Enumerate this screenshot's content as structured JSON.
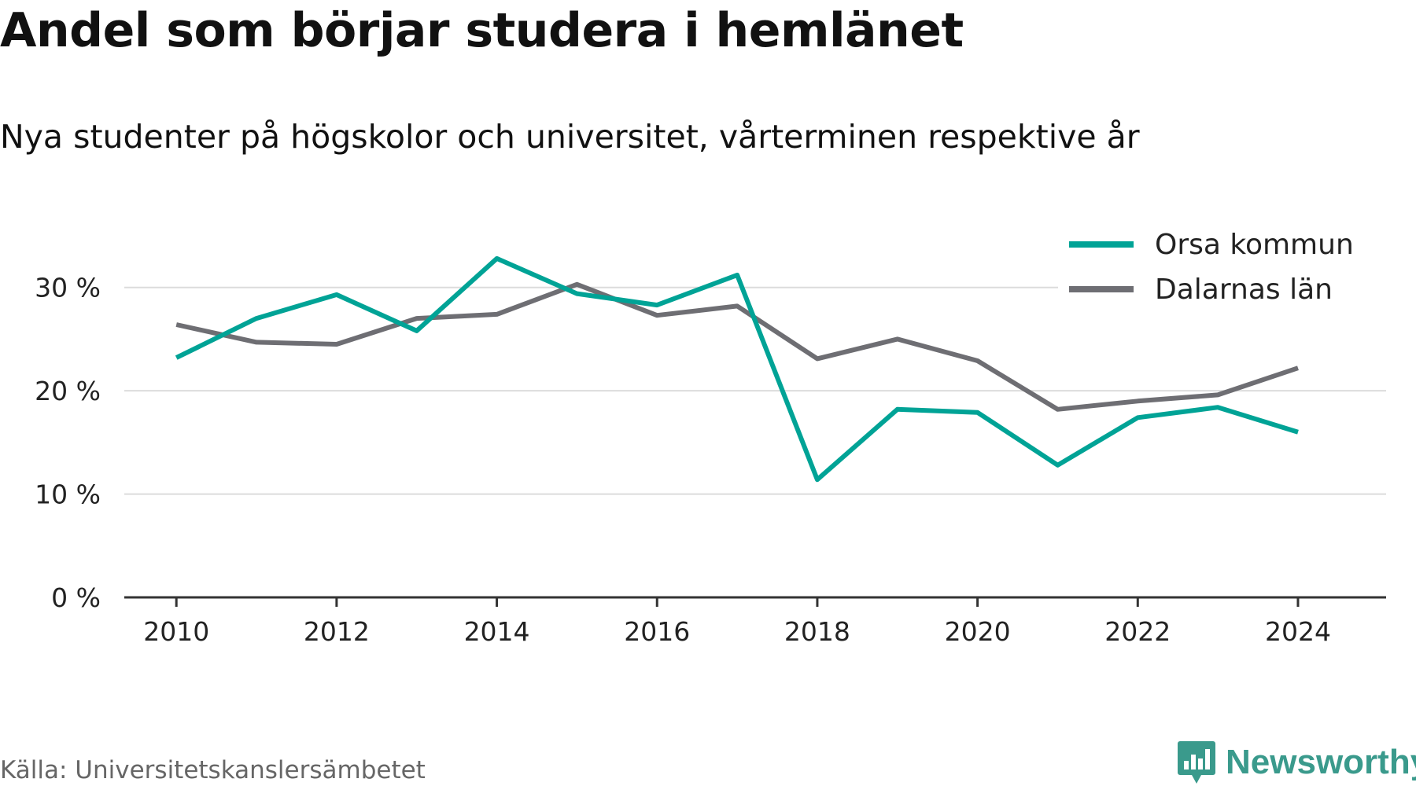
{
  "chart_data": {
    "type": "line",
    "title": "Andel som börjar studera i hemlänet",
    "subtitle": "Nya studenter på högskolor och universitet, vårterminen respektive år",
    "xlabel": "",
    "ylabel": "",
    "x": [
      2010,
      2011,
      2012,
      2013,
      2014,
      2015,
      2016,
      2017,
      2018,
      2019,
      2020,
      2021,
      2022,
      2023,
      2024
    ],
    "series": [
      {
        "name": "Orsa kommun",
        "color": "#00a396",
        "values": [
          23.2,
          27.0,
          29.3,
          25.8,
          32.8,
          29.4,
          28.3,
          31.2,
          11.4,
          18.2,
          17.9,
          12.8,
          17.4,
          18.4,
          16.0
        ]
      },
      {
        "name": "Dalarnas län",
        "color": "#6e6e73",
        "values": [
          26.4,
          24.7,
          24.5,
          27.0,
          27.4,
          30.3,
          27.3,
          28.2,
          23.1,
          25.0,
          22.9,
          18.2,
          19.0,
          19.6,
          22.2
        ]
      }
    ],
    "ylim": [
      0,
      35
    ],
    "xlim": [
      2009.35,
      2025.1
    ],
    "yticks": [
      0,
      10,
      20,
      30
    ],
    "ytick_labels": [
      "0 %",
      "10 %",
      "20 %",
      "30 %"
    ],
    "xticks": [
      2010,
      2012,
      2014,
      2016,
      2018,
      2020,
      2022,
      2024
    ],
    "xtick_labels": [
      "2010",
      "2012",
      "2014",
      "2016",
      "2018",
      "2020",
      "2022",
      "2024"
    ],
    "grid": true,
    "legend_position": "top-right"
  },
  "source": "Källa: Universitetskanslersämbetet",
  "brand": {
    "name": "Newsworthy",
    "icon": "newsworthy-logo-icon",
    "color": "#3a9a8c"
  }
}
